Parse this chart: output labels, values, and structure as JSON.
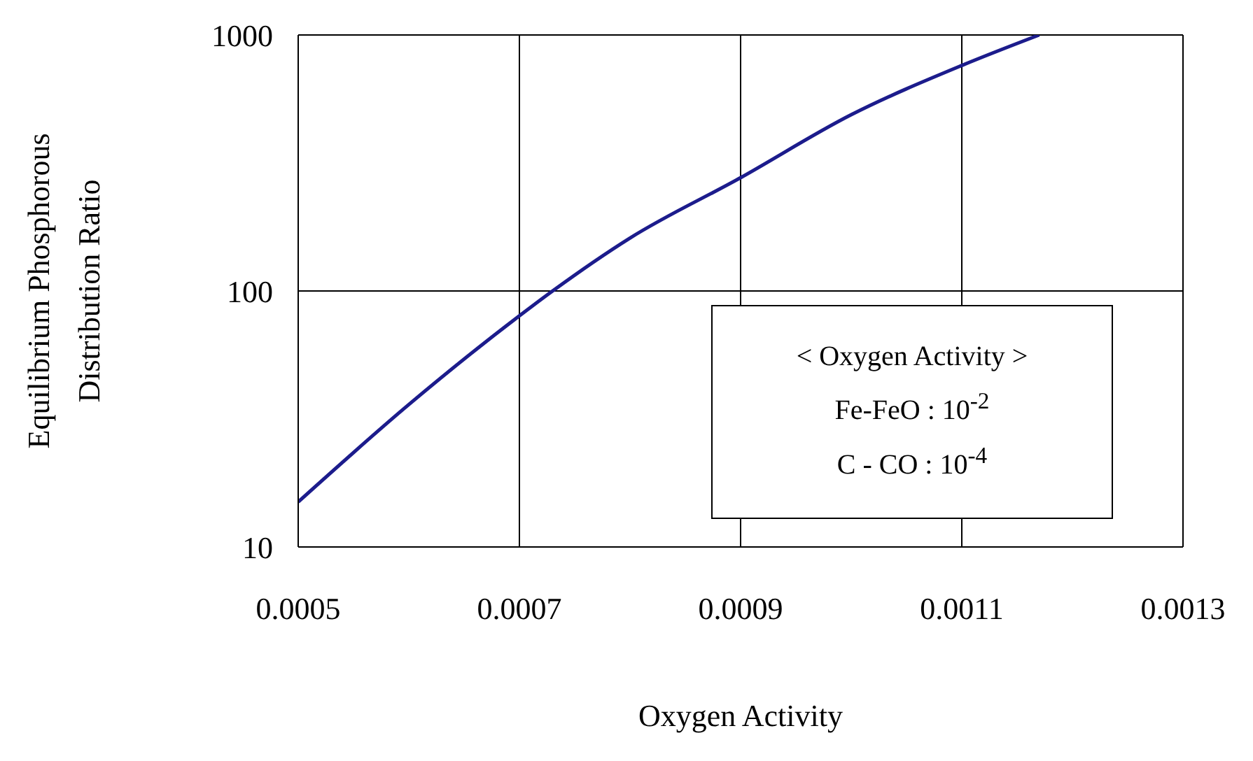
{
  "chart_data": {
    "type": "line",
    "xlabel": "Oxygen Activity",
    "ylabel": "Equilibrium Phosphorous Distribution Ratio",
    "x": [
      0.0005,
      0.0006,
      0.0007,
      0.00073,
      0.0008,
      0.0009,
      0.001,
      0.0011,
      0.00117
    ],
    "series": [
      {
        "color": "#1c1c8c",
        "values": [
          15,
          36,
          80,
          100,
          161,
          277,
          488,
          760,
          1000
        ]
      }
    ],
    "xlim": [
      0.0005,
      0.0013
    ],
    "xticks": [
      0.0005,
      0.0007,
      0.0009,
      0.0011,
      0.0013
    ],
    "ylim": [
      10,
      1000
    ],
    "yticks": [
      10,
      100,
      1000
    ],
    "log": "y",
    "grid": true,
    "marker": "none",
    "line_style": "solid",
    "annotations": [
      "< Oxygen Activity >",
      "Fe-FeO : 10$^{-2}$",
      "C - CO : 10$^{-4}$"
    ]
  }
}
